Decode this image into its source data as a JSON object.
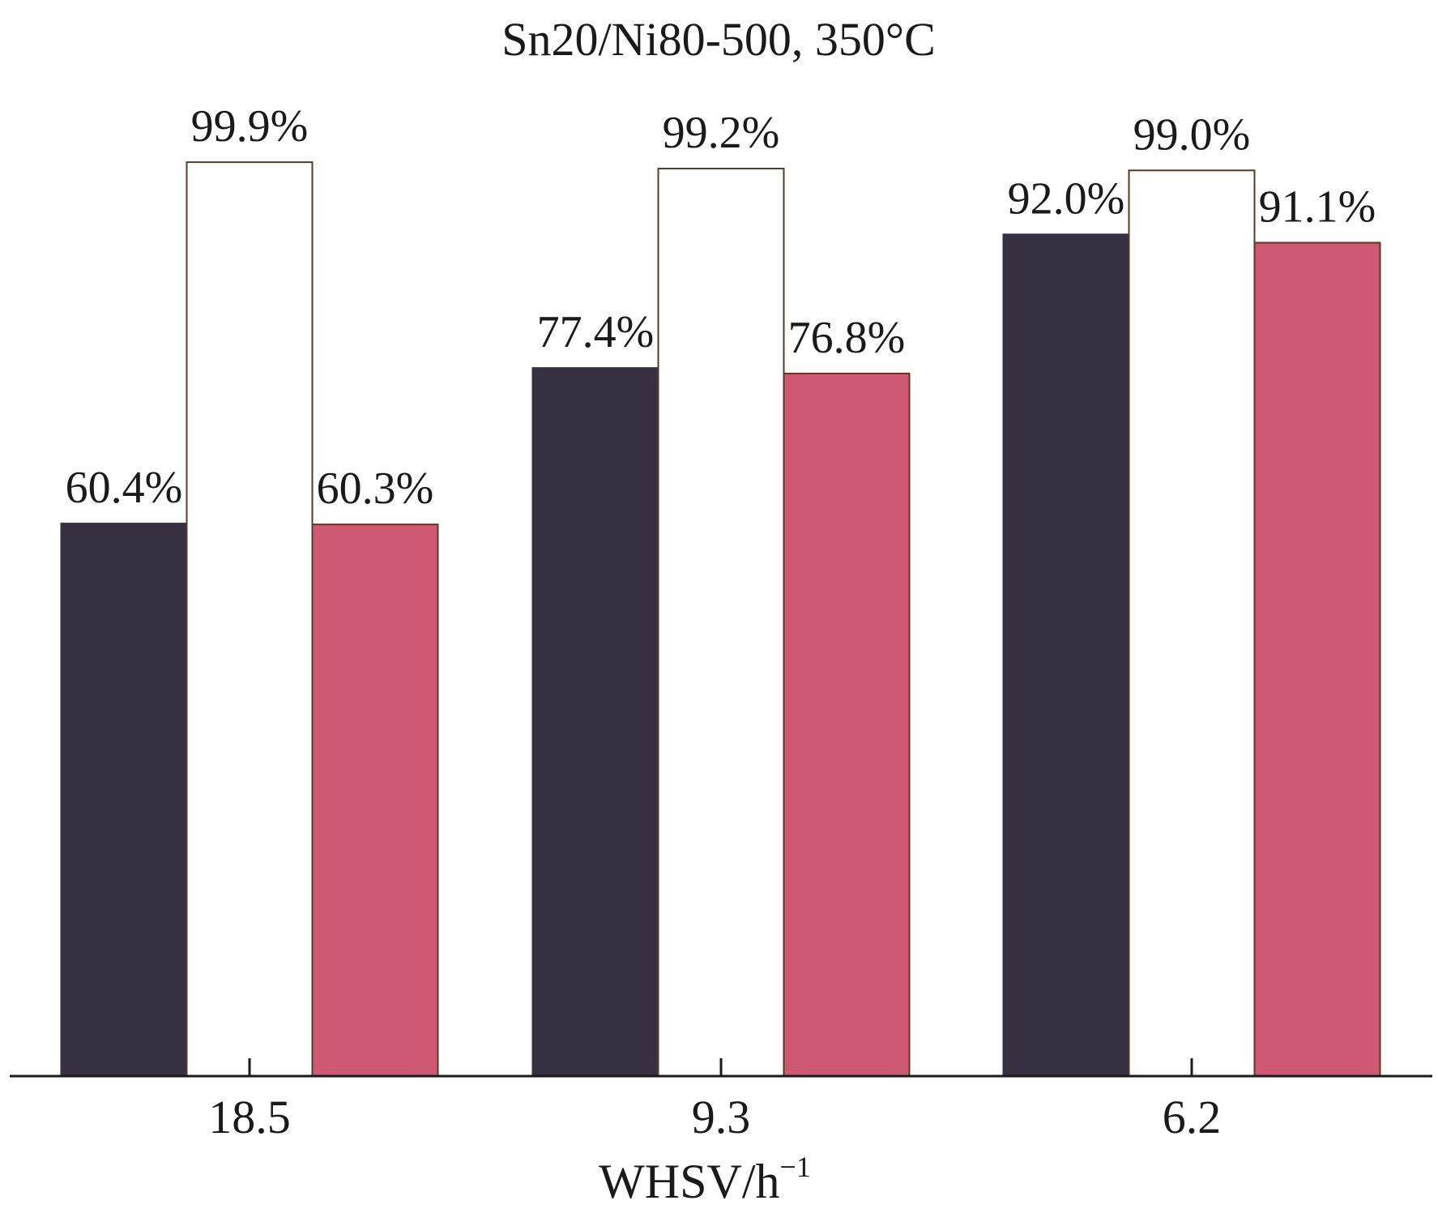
{
  "chart_data": {
    "type": "bar",
    "title": "Sn20/Ni80-500, 350°C",
    "xlabel": "WHSV/h",
    "xlabel_superscript": "−1",
    "ylabel": "",
    "categories": [
      "18.5",
      "9.3",
      "6.2"
    ],
    "ylim": [
      0,
      100
    ],
    "grid": false,
    "legend": "none",
    "series": [
      {
        "values": [
          60.4,
          77.4,
          92.0
        ],
        "labels": [
          "60.4%",
          "77.4%",
          "92.0%"
        ],
        "color": "#372f42",
        "outline": "#372f42"
      },
      {
        "values": [
          99.9,
          99.2,
          99.0
        ],
        "labels": [
          "99.9%",
          "99.2%",
          "99.0%"
        ],
        "color": "#ffffff",
        "outline": "#5a3a22"
      },
      {
        "values": [
          60.3,
          76.8,
          91.1
        ],
        "labels": [
          "60.3%",
          "76.8%",
          "91.1%"
        ],
        "color": "#cf5872",
        "outline": "#5a3a22"
      }
    ]
  }
}
